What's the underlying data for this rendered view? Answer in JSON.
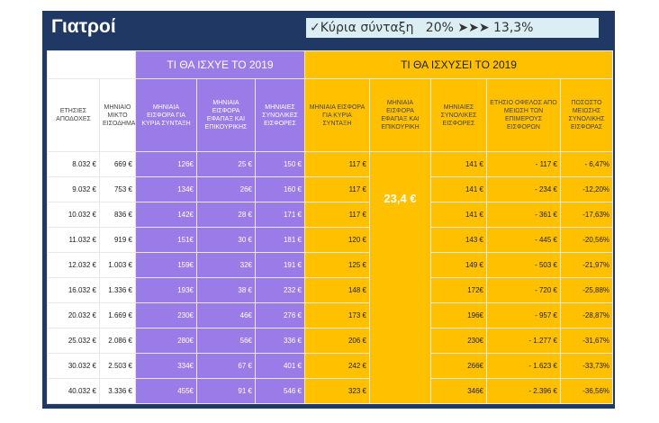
{
  "title": "Γιατροί",
  "banner": "✓Κύρια σύνταξη   20% ➤➤➤ 13,3%",
  "table": {
    "groups": [
      "ΤΙ ΘΑ ΙΣΧΥΕ ΤΟ 2019",
      "ΤΙ ΘΑ ΙΣΧΥΣΕΙ ΤΟ 2019"
    ],
    "columns": [
      "ΕΤΗΣΙΕΣ ΑΠΟΔΟΧΕΣ",
      "ΜΗΝΙΑΙΟ ΜΙΚΤΟ ΕΙΣΟΔΗΜΑ",
      "ΜΗΝΙΑΙΑ ΕΙΣΦΟΡΑ ΓΙΑ ΚΥΡΙΑ ΣΥΝΤΑΞΗ",
      "ΜΗΝΙΑΙΑ ΕΙΣΦΟΡΑ ΕΦΑΠΑΞ ΚΑΙ ΕΠΙΚΟΥΡΙΚΗΣ",
      "ΜΗΝΙΑΙΕΣ ΣΥΝΟΛΙΚΕΣ ΕΙΣΦΟΡΕΣ",
      "ΜΗΝΙΑΙΑ ΕΙΣΦΟΡΑ ΓΙΑ ΚΥΡΙΑ ΣΥΝΤΑΞΗ",
      "ΜΗΝΙΑΙΑ ΕΙΣΦΟΡΑ ΕΦΑΠΑΞ ΚΑΙ ΕΠΙΚΟΥΡΙΚΗ",
      "ΜΗΝΙΑΙΕΣ ΣΥΝΟΛΙΚΕΣ ΕΙΣΦΟΡΕΣ",
      "ΕΤΗΣΙΟ ΟΦΕΛΟΣ ΑΠΟ ΜΕΙΩΣΗ ΤΩΝ ΕΠΙΜΕΡΟΥΣ ΕΙΣΦΟΡΩΝ",
      "ΠΟΣΟΣΤΟ ΜΕΙΩΣΗΣ ΣΥΝΟΛΙΚΗΣ ΕΙΣΦΟΡΑΣ"
    ],
    "merged_cell": "23,4 €",
    "rows": [
      [
        "8.032 €",
        "669 €",
        "126€",
        "25 €",
        "150 €",
        "117 €",
        "141 €",
        "- 117 €",
        "- 6,47%"
      ],
      [
        "9.032 €",
        "753 €",
        "134€",
        "26€",
        "160 €",
        "117 €",
        "141 €",
        "- 234 €",
        "-12,20%"
      ],
      [
        "10.032 €",
        "836 €",
        "142€",
        "28 €",
        "171 €",
        "117 €",
        "141 €",
        "- 361 €",
        "-17,63%"
      ],
      [
        "11.032 €",
        "919 €",
        "151€",
        "30 €",
        "181 €",
        "120 €",
        "143 €",
        "- 445 €",
        "-20,56%"
      ],
      [
        "12.032 €",
        "1.003 €",
        "159€",
        "32€",
        "191 €",
        "125 €",
        "149 €",
        "- 503 €",
        "-21,97%"
      ],
      [
        "16.032 €",
        "1.336 €",
        "193€",
        "38 €",
        "232 €",
        "148 €",
        "172€",
        "- 720 €",
        "-25,88%"
      ],
      [
        "20.032 €",
        "1.669 €",
        "230€",
        "46€",
        "276 €",
        "173 €",
        "196€",
        "- 957 €",
        "-28,87%"
      ],
      [
        "25.032 €",
        "2.086 €",
        "280€",
        "56€",
        "336 €",
        "206 €",
        "230€",
        "- 1.277 €",
        "-31,67%"
      ],
      [
        "30.032 €",
        "2.503 €",
        "334€",
        "67 €",
        "401 €",
        "242 €",
        "266€",
        "- 1.623 €",
        "-33,73%"
      ],
      [
        "40.032 €",
        "3.336 €",
        "455€",
        "91 €",
        "546 €",
        "323 €",
        "346€",
        "- 2.396 €",
        "-36,56%"
      ]
    ]
  }
}
